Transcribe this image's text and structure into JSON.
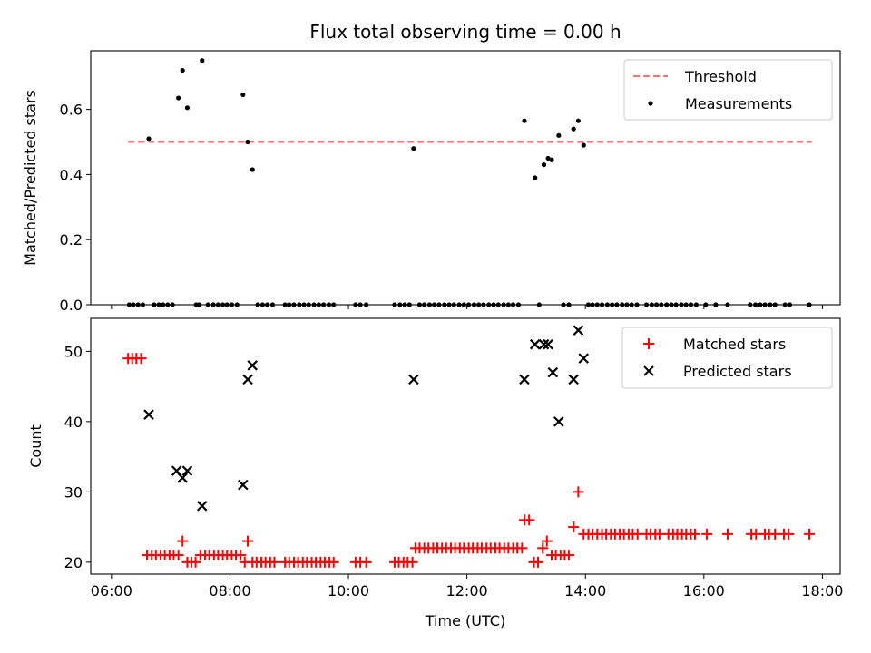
{
  "chart_data": [
    {
      "type": "scatter",
      "title": "Flux total observing time = 0.00 h",
      "xlabel": "",
      "ylabel": "Matched/Predicted stars",
      "ylim": [
        0,
        0.78
      ],
      "yticks": [
        0.0,
        0.2,
        0.4,
        0.6
      ],
      "ytick_labels": [
        "0.0",
        "0.2",
        "0.4",
        "0.6"
      ],
      "xlim": [
        5.65,
        18.3
      ],
      "legend": {
        "position": "top-right",
        "entries": [
          "Threshold",
          "Measurements"
        ]
      },
      "threshold": {
        "name": "Threshold",
        "y": 0.5,
        "x_range": [
          6.28,
          17.82
        ],
        "color": "#ff7070",
        "style": "dashed"
      },
      "series": [
        {
          "name": "Measurements",
          "color": "#000000",
          "marker": "dot",
          "points": [
            [
              6.63,
              0.51
            ],
            [
              7.13,
              0.635
            ],
            [
              7.2,
              0.72
            ],
            [
              7.28,
              0.605
            ],
            [
              7.53,
              0.75
            ],
            [
              8.22,
              0.645
            ],
            [
              8.3,
              0.5
            ],
            [
              8.38,
              0.415
            ],
            [
              11.1,
              0.48
            ],
            [
              12.97,
              0.565
            ],
            [
              13.15,
              0.39
            ],
            [
              13.3,
              0.43
            ],
            [
              13.37,
              0.45
            ],
            [
              13.43,
              0.445
            ],
            [
              13.55,
              0.52
            ],
            [
              13.8,
              0.54
            ],
            [
              13.88,
              0.565
            ],
            [
              13.97,
              0.49
            ],
            [
              6.3,
              0
            ],
            [
              6.37,
              0
            ],
            [
              6.45,
              0
            ],
            [
              6.53,
              0
            ],
            [
              6.72,
              0
            ],
            [
              6.8,
              0
            ],
            [
              6.87,
              0
            ],
            [
              6.95,
              0
            ],
            [
              7.03,
              0
            ],
            [
              7.43,
              0
            ],
            [
              7.48,
              0
            ],
            [
              7.63,
              0
            ],
            [
              7.72,
              0
            ],
            [
              7.8,
              0
            ],
            [
              7.88,
              0
            ],
            [
              7.95,
              0
            ],
            [
              8.03,
              0
            ],
            [
              8.12,
              0
            ],
            [
              8.47,
              0
            ],
            [
              8.55,
              0
            ],
            [
              8.63,
              0
            ],
            [
              8.72,
              0
            ],
            [
              8.93,
              0
            ],
            [
              9.0,
              0
            ],
            [
              9.08,
              0
            ],
            [
              9.17,
              0
            ],
            [
              9.25,
              0
            ],
            [
              9.33,
              0
            ],
            [
              9.42,
              0
            ],
            [
              9.5,
              0
            ],
            [
              9.58,
              0
            ],
            [
              9.67,
              0
            ],
            [
              9.75,
              0
            ],
            [
              10.12,
              0
            ],
            [
              10.2,
              0
            ],
            [
              10.3,
              0
            ],
            [
              10.78,
              0
            ],
            [
              10.87,
              0
            ],
            [
              10.95,
              0
            ],
            [
              11.03,
              0
            ],
            [
              11.2,
              0
            ],
            [
              11.28,
              0
            ],
            [
              11.37,
              0
            ],
            [
              11.45,
              0
            ],
            [
              11.53,
              0
            ],
            [
              11.62,
              0
            ],
            [
              11.7,
              0
            ],
            [
              11.78,
              0
            ],
            [
              11.87,
              0
            ],
            [
              11.95,
              0
            ],
            [
              12.03,
              0
            ],
            [
              12.12,
              0
            ],
            [
              12.2,
              0
            ],
            [
              12.28,
              0
            ],
            [
              12.37,
              0
            ],
            [
              12.45,
              0
            ],
            [
              12.53,
              0
            ],
            [
              12.62,
              0
            ],
            [
              12.7,
              0
            ],
            [
              12.78,
              0
            ],
            [
              12.87,
              0
            ],
            [
              13.22,
              0
            ],
            [
              13.63,
              0
            ],
            [
              13.72,
              0
            ],
            [
              14.05,
              0
            ],
            [
              14.12,
              0
            ],
            [
              14.2,
              0
            ],
            [
              14.28,
              0
            ],
            [
              14.37,
              0
            ],
            [
              14.45,
              0
            ],
            [
              14.53,
              0
            ],
            [
              14.62,
              0
            ],
            [
              14.7,
              0
            ],
            [
              14.78,
              0
            ],
            [
              14.87,
              0
            ],
            [
              15.03,
              0
            ],
            [
              15.12,
              0
            ],
            [
              15.2,
              0
            ],
            [
              15.28,
              0
            ],
            [
              15.37,
              0
            ],
            [
              15.45,
              0
            ],
            [
              15.53,
              0
            ],
            [
              15.62,
              0
            ],
            [
              15.7,
              0
            ],
            [
              15.78,
              0
            ],
            [
              15.87,
              0
            ],
            [
              16.03,
              0
            ],
            [
              16.2,
              0
            ],
            [
              16.4,
              0
            ],
            [
              16.78,
              0
            ],
            [
              16.87,
              0
            ],
            [
              16.95,
              0
            ],
            [
              17.03,
              0
            ],
            [
              17.12,
              0
            ],
            [
              17.2,
              0
            ],
            [
              17.37,
              0
            ],
            [
              17.45,
              0
            ],
            [
              17.78,
              0
            ]
          ]
        }
      ]
    },
    {
      "type": "scatter",
      "title": "",
      "xlabel": "Time (UTC)",
      "ylabel": "Count",
      "ylim": [
        18.3,
        54.7
      ],
      "yticks": [
        20,
        30,
        40,
        50
      ],
      "ytick_labels": [
        "20",
        "30",
        "40",
        "50"
      ],
      "xlim": [
        5.65,
        18.3
      ],
      "xticks": [
        6,
        8,
        10,
        12,
        14,
        16,
        18
      ],
      "xtick_labels": [
        "06:00",
        "08:00",
        "10:00",
        "12:00",
        "14:00",
        "16:00",
        "18:00"
      ],
      "legend": {
        "position": "top-right",
        "entries": [
          "Matched stars",
          "Predicted stars"
        ]
      },
      "series": [
        {
          "name": "Matched stars",
          "color": "#ff0000",
          "marker": "plus",
          "points": [
            [
              6.28,
              49
            ],
            [
              6.35,
              49
            ],
            [
              6.42,
              49
            ],
            [
              6.5,
              49
            ],
            [
              6.6,
              21
            ],
            [
              6.68,
              21
            ],
            [
              6.75,
              21
            ],
            [
              6.83,
              21
            ],
            [
              6.9,
              21
            ],
            [
              6.98,
              21
            ],
            [
              7.05,
              21
            ],
            [
              7.13,
              21
            ],
            [
              7.2,
              23
            ],
            [
              7.28,
              20
            ],
            [
              7.35,
              20
            ],
            [
              7.42,
              20
            ],
            [
              7.5,
              21
            ],
            [
              7.58,
              21
            ],
            [
              7.65,
              21
            ],
            [
              7.73,
              21
            ],
            [
              7.8,
              21
            ],
            [
              7.88,
              21
            ],
            [
              7.95,
              21
            ],
            [
              8.03,
              21
            ],
            [
              8.1,
              21
            ],
            [
              8.18,
              21
            ],
            [
              8.25,
              20
            ],
            [
              8.3,
              23
            ],
            [
              8.38,
              20
            ],
            [
              8.45,
              20
            ],
            [
              8.53,
              20
            ],
            [
              8.6,
              20
            ],
            [
              8.68,
              20
            ],
            [
              8.75,
              20
            ],
            [
              8.93,
              20
            ],
            [
              9.0,
              20
            ],
            [
              9.08,
              20
            ],
            [
              9.15,
              20
            ],
            [
              9.23,
              20
            ],
            [
              9.3,
              20
            ],
            [
              9.38,
              20
            ],
            [
              9.45,
              20
            ],
            [
              9.53,
              20
            ],
            [
              9.6,
              20
            ],
            [
              9.68,
              20
            ],
            [
              9.75,
              20
            ],
            [
              10.12,
              20
            ],
            [
              10.2,
              20
            ],
            [
              10.3,
              20
            ],
            [
              10.78,
              20
            ],
            [
              10.85,
              20
            ],
            [
              10.93,
              20
            ],
            [
              11.0,
              20
            ],
            [
              11.08,
              20
            ],
            [
              11.13,
              22
            ],
            [
              11.2,
              22
            ],
            [
              11.28,
              22
            ],
            [
              11.35,
              22
            ],
            [
              11.43,
              22
            ],
            [
              11.5,
              22
            ],
            [
              11.58,
              22
            ],
            [
              11.65,
              22
            ],
            [
              11.73,
              22
            ],
            [
              11.8,
              22
            ],
            [
              11.88,
              22
            ],
            [
              11.95,
              22
            ],
            [
              12.03,
              22
            ],
            [
              12.1,
              22
            ],
            [
              12.18,
              22
            ],
            [
              12.25,
              22
            ],
            [
              12.33,
              22
            ],
            [
              12.4,
              22
            ],
            [
              12.48,
              22
            ],
            [
              12.55,
              22
            ],
            [
              12.63,
              22
            ],
            [
              12.7,
              22
            ],
            [
              12.78,
              22
            ],
            [
              12.85,
              22
            ],
            [
              12.93,
              22
            ],
            [
              12.97,
              26
            ],
            [
              13.05,
              26
            ],
            [
              13.13,
              20
            ],
            [
              13.2,
              20
            ],
            [
              13.28,
              22
            ],
            [
              13.35,
              23
            ],
            [
              13.43,
              21
            ],
            [
              13.5,
              21
            ],
            [
              13.58,
              21
            ],
            [
              13.65,
              21
            ],
            [
              13.72,
              21
            ],
            [
              13.8,
              25
            ],
            [
              13.88,
              30
            ],
            [
              13.97,
              24
            ],
            [
              14.05,
              24
            ],
            [
              14.12,
              24
            ],
            [
              14.2,
              24
            ],
            [
              14.28,
              24
            ],
            [
              14.35,
              24
            ],
            [
              14.43,
              24
            ],
            [
              14.5,
              24
            ],
            [
              14.58,
              24
            ],
            [
              14.65,
              24
            ],
            [
              14.73,
              24
            ],
            [
              14.8,
              24
            ],
            [
              14.88,
              24
            ],
            [
              15.03,
              24
            ],
            [
              15.1,
              24
            ],
            [
              15.18,
              24
            ],
            [
              15.25,
              24
            ],
            [
              15.4,
              24
            ],
            [
              15.48,
              24
            ],
            [
              15.55,
              24
            ],
            [
              15.63,
              24
            ],
            [
              15.7,
              24
            ],
            [
              15.78,
              24
            ],
            [
              15.85,
              24
            ],
            [
              16.05,
              24
            ],
            [
              16.4,
              24
            ],
            [
              16.8,
              24
            ],
            [
              16.88,
              24
            ],
            [
              17.03,
              24
            ],
            [
              17.1,
              24
            ],
            [
              17.2,
              24
            ],
            [
              17.35,
              24
            ],
            [
              17.43,
              24
            ],
            [
              17.78,
              24
            ]
          ]
        },
        {
          "name": "Predicted stars",
          "color": "#000000",
          "marker": "x",
          "points": [
            [
              6.63,
              41
            ],
            [
              7.1,
              33
            ],
            [
              7.2,
              32
            ],
            [
              7.28,
              33
            ],
            [
              7.53,
              28
            ],
            [
              8.22,
              31
            ],
            [
              8.3,
              46
            ],
            [
              8.38,
              48
            ],
            [
              11.1,
              46
            ],
            [
              12.97,
              46
            ],
            [
              13.15,
              51
            ],
            [
              13.3,
              51
            ],
            [
              13.37,
              51
            ],
            [
              13.45,
              47
            ],
            [
              13.55,
              40
            ],
            [
              13.8,
              46
            ],
            [
              13.88,
              53
            ],
            [
              13.97,
              49
            ]
          ]
        }
      ]
    }
  ]
}
